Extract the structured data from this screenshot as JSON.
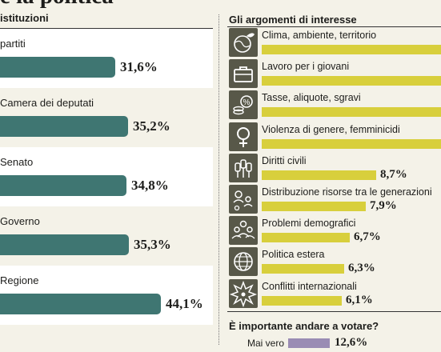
{
  "headline": "e la politica",
  "chart_data": [
    {
      "type": "bar",
      "title": "istituzioni",
      "categories": [
        "partiti",
        "Camera dei deputati",
        "Senato",
        "Governo",
        "Regione"
      ],
      "values": [
        31.6,
        35.2,
        34.8,
        35.3,
        44.1
      ],
      "labels": [
        "31,6%",
        "35,2%",
        "34,8%",
        "35,3%",
        "44,1%"
      ]
    },
    {
      "type": "bar",
      "title": "Gli argomenti di interesse",
      "categories": [
        "Clima, ambiente, territorio",
        "Lavoro per i giovani",
        "Tasse, aliquote, sgravi",
        "Violenza di genere, femminicidi",
        "Diritti civili",
        "Distribuzione risorse tra le generazioni",
        "Problemi demografici",
        "Politica estera",
        "Conflitti internazionali"
      ],
      "values": [
        null,
        null,
        null,
        null,
        8.7,
        7.9,
        6.7,
        6.3,
        6.1
      ],
      "labels": [
        "",
        "",
        "",
        "",
        "8,7%",
        "7,9%",
        "6,7%",
        "6,3%",
        "6,1%"
      ],
      "icons": [
        "globe-leaf-icon",
        "briefcase-icon",
        "coins-percent-icon",
        "female-symbol-icon",
        "raised-fists-icon",
        "generations-coins-icon",
        "people-group-icon",
        "world-grid-icon",
        "explosion-icon"
      ]
    },
    {
      "type": "bar",
      "title": "È importante andare a votare?",
      "categories": [
        "Mai vero"
      ],
      "values": [
        12.6
      ],
      "labels": [
        "12,6%"
      ]
    }
  ]
}
